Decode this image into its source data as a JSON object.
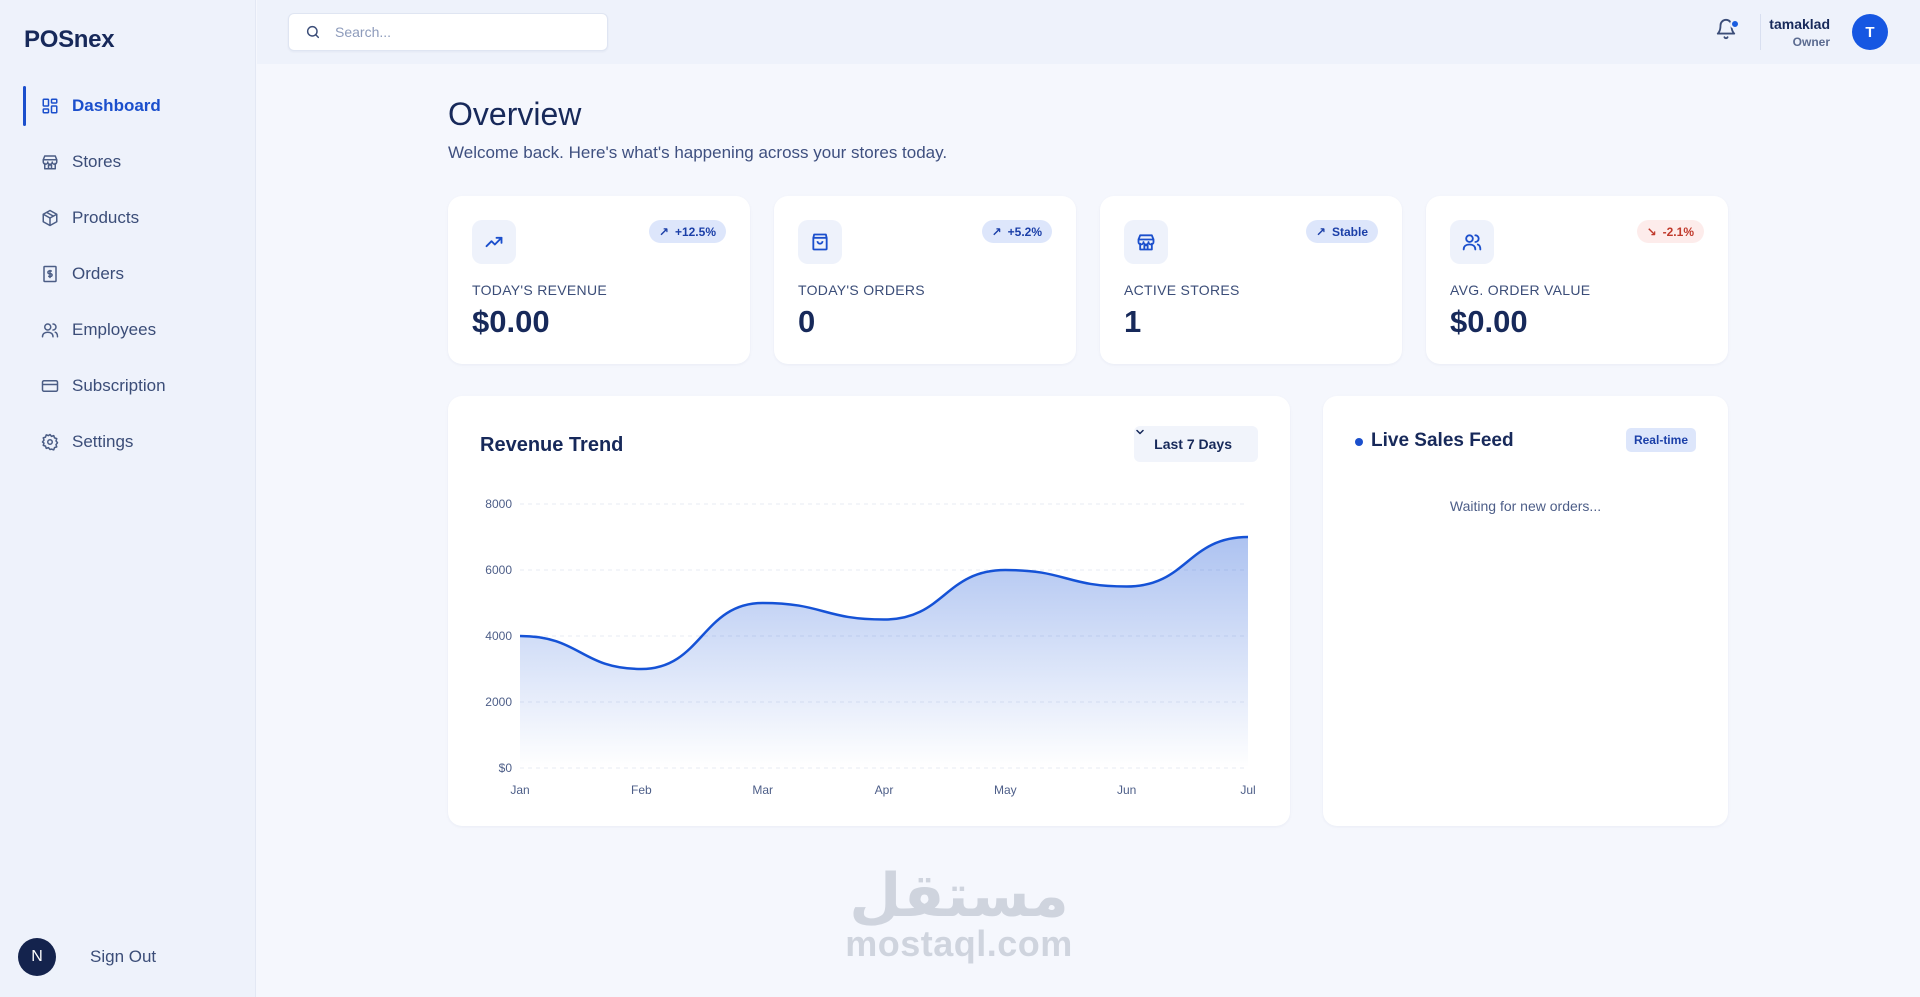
{
  "app": {
    "logo": "POSnex"
  },
  "sidebar": {
    "items": [
      {
        "label": "Dashboard",
        "icon": "dashboard-icon",
        "active": true
      },
      {
        "label": "Stores",
        "icon": "store-icon"
      },
      {
        "label": "Products",
        "icon": "box-icon"
      },
      {
        "label": "Orders",
        "icon": "receipt-icon"
      },
      {
        "label": "Employees",
        "icon": "users-icon"
      },
      {
        "label": "Subscription",
        "icon": "credit-card-icon"
      },
      {
        "label": "Settings",
        "icon": "gear-icon"
      }
    ],
    "signout": {
      "avatar_letter": "N",
      "label": "Sign Out"
    }
  },
  "header": {
    "search_placeholder": "Search...",
    "user": {
      "name": "tamaklad",
      "role": "Owner",
      "avatar_letter": "T"
    }
  },
  "page": {
    "title": "Overview",
    "subtitle": "Welcome back. Here's what's happening across your stores today."
  },
  "stats": [
    {
      "label": "TODAY'S REVENUE",
      "value": "$0.00",
      "badge": "+12.5%",
      "badge_icon": "arrow-up-right-icon",
      "icon": "trending-up-icon",
      "trend": "up"
    },
    {
      "label": "TODAY'S ORDERS",
      "value": "0",
      "badge": "+5.2%",
      "badge_icon": "arrow-up-right-icon",
      "icon": "shopping-bag-icon",
      "trend": "up"
    },
    {
      "label": "ACTIVE STORES",
      "value": "1",
      "badge": "Stable",
      "badge_icon": "arrow-up-right-icon",
      "icon": "store-icon",
      "trend": "up"
    },
    {
      "label": "AVG. ORDER VALUE",
      "value": "$0.00",
      "badge": "-2.1%",
      "badge_icon": "arrow-down-right-icon",
      "icon": "users-icon",
      "trend": "down"
    }
  ],
  "revenue": {
    "title": "Revenue Trend",
    "range_label": "Last 7 Days"
  },
  "chart_data": {
    "type": "area",
    "categories": [
      "Jan",
      "Feb",
      "Mar",
      "Apr",
      "May",
      "Jun",
      "Jul"
    ],
    "values": [
      4000,
      3000,
      5000,
      4500,
      6000,
      5500,
      7000
    ],
    "y_ticks": [
      "$0",
      "2000",
      "4000",
      "6000",
      "8000"
    ],
    "ylim": [
      0,
      8000
    ],
    "grid": true,
    "color": "#1552d6"
  },
  "feed": {
    "title": "Live Sales Feed",
    "badge": "Real-time",
    "empty_text": "Waiting for new orders..."
  },
  "watermark": {
    "arabic": "مستقل",
    "latin": "mostaql.com"
  },
  "colors": {
    "accent": "#1b4fcc",
    "navy": "#17295a",
    "negative": "#c0392b"
  }
}
